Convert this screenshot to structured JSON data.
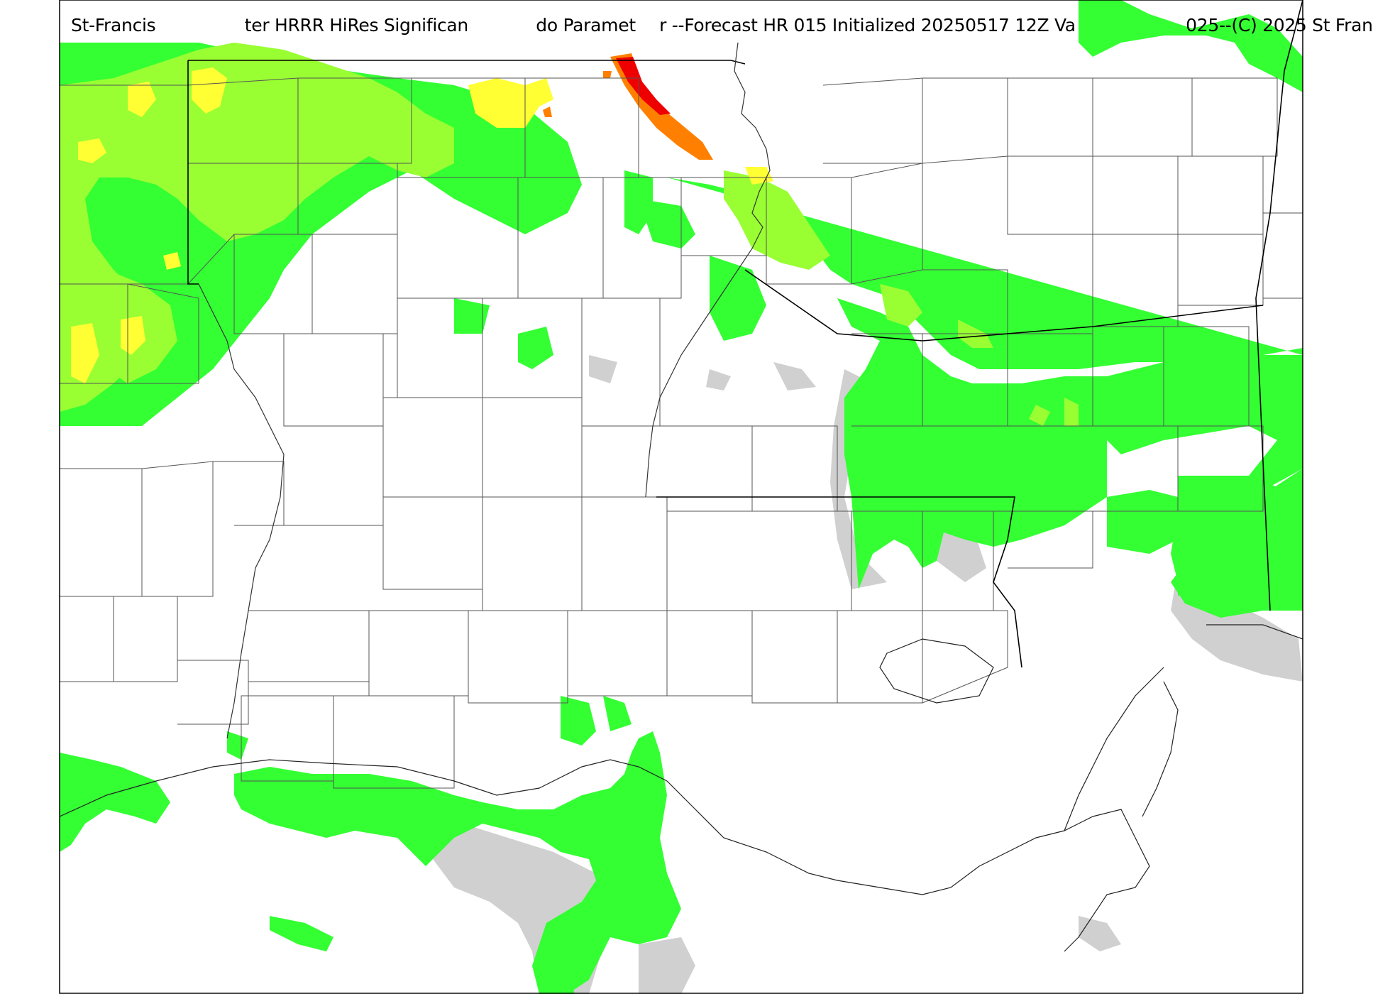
{
  "title": {
    "segment_1": "St-Francis",
    "segment_2": "ter HRRR HiRes Significan",
    "segment_3": "do Paramet",
    "segment_4": "r --Forecast HR 015 Initialized 20250517 12Z Va",
    "segment_5": "025--(C) 2025 St Fran"
  },
  "colors": {
    "background": "#ffffff",
    "light_gray": "#d0d0d0",
    "green": "#33ff33",
    "yellow_green": "#99ff33",
    "yellow": "#ffff33",
    "orange": "#ff8000",
    "red": "#ee0000",
    "county_line": "#555555",
    "state_line": "#000000"
  }
}
